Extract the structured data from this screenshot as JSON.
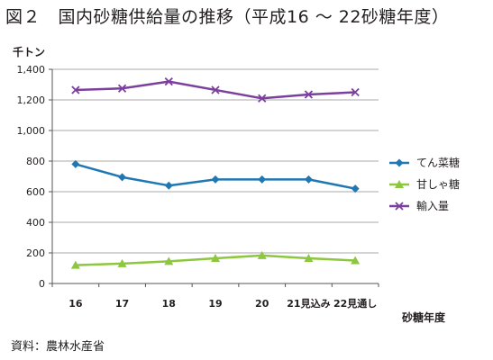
{
  "figure": {
    "title": "図２　国内砂糖供給量の推移（平成16 ～ 22砂糖年度）",
    "source": "資料：農林水産省"
  },
  "chart_data": {
    "type": "line",
    "title": "",
    "ylabel": "千トン",
    "xlabel": "砂糖年度",
    "ylim": [
      0,
      1400
    ],
    "ytick_values": [
      0,
      200,
      400,
      600,
      800,
      1000,
      1200,
      1400
    ],
    "ytick_labels": [
      "0",
      "200",
      "400",
      "600",
      "800",
      "1,000",
      "1,200",
      "1,400"
    ],
    "categories": [
      "16",
      "17",
      "18",
      "19",
      "20",
      "21見込み",
      "22見通し"
    ],
    "grid": "horizontal",
    "legend": "right",
    "series": [
      {
        "name": "てん菜糖",
        "color": "#1f78b4",
        "marker": "diamond",
        "values": [
          780,
          695,
          640,
          680,
          680,
          680,
          620
        ]
      },
      {
        "name": "甘しゃ糖",
        "color": "#8dc63f",
        "marker": "triangle",
        "values": [
          120,
          130,
          145,
          165,
          183,
          165,
          150
        ]
      },
      {
        "name": "輸入量",
        "color": "#7b3f9e",
        "marker": "x",
        "values": [
          1265,
          1275,
          1320,
          1265,
          1210,
          1235,
          1250
        ]
      }
    ]
  }
}
